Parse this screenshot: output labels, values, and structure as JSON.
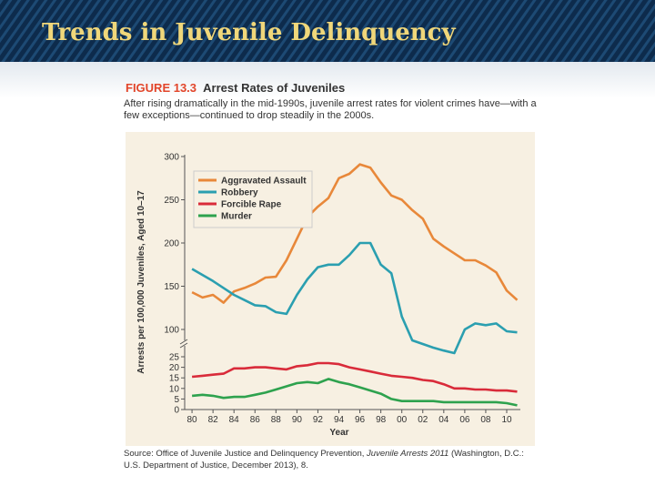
{
  "header": {
    "title": "Trends in Juvenile Delinquency"
  },
  "figure": {
    "label": "FIGURE 13.3",
    "title": "Arrest Rates of Juveniles",
    "caption": "After rising dramatically in the mid-1990s, juvenile arrest rates for violent crimes have—with a few exceptions—continued to drop steadily in the 2000s.",
    "source": {
      "before": "Source: Office of Juvenile Justice and Delinquency Prevention, ",
      "italic": "Juvenile Arrests 2011",
      "after": " (Washington, D.C.: U.S. Department of Justice, December 2013), 8."
    }
  },
  "chart_data": {
    "type": "line",
    "y_label": "Arrests per 100,000 Juveniles, Aged 10–17",
    "x_label": "Year",
    "x": [
      1980,
      1981,
      1982,
      1983,
      1984,
      1985,
      1986,
      1987,
      1988,
      1989,
      1990,
      1991,
      1992,
      1993,
      1994,
      1995,
      1996,
      1997,
      1998,
      1999,
      2000,
      2001,
      2002,
      2003,
      2004,
      2005,
      2006,
      2007,
      2008,
      2009,
      2010,
      2011
    ],
    "series": [
      {
        "name": "Aggravated Assault",
        "color": "#e8883a",
        "values": [
          143,
          137,
          140,
          131,
          144,
          148,
          153,
          160,
          161,
          180,
          205,
          230,
          242,
          252,
          275,
          280,
          291,
          287,
          270,
          255,
          250,
          238,
          228,
          205,
          196,
          188,
          180,
          180,
          174,
          166,
          145,
          134
        ]
      },
      {
        "name": "Robbery",
        "color": "#2b9fb0",
        "values": [
          170,
          163,
          156,
          148,
          140,
          134,
          128,
          127,
          120,
          118,
          140,
          158,
          172,
          175,
          175,
          186,
          200,
          200,
          175,
          165,
          115,
          70,
          60,
          50,
          42,
          35,
          100,
          107,
          105,
          107,
          95,
          92
        ]
      },
      {
        "name": "Forcible Rape",
        "color": "#d92b3a",
        "values": [
          15.5,
          16,
          16.5,
          17,
          19.5,
          19.5,
          20,
          20,
          19.5,
          19,
          20.5,
          21,
          22,
          22,
          21.5,
          20,
          19,
          18,
          17,
          16,
          15.5,
          15,
          14,
          13.5,
          12,
          10,
          10,
          9.5,
          9.5,
          9,
          9,
          8.5
        ]
      },
      {
        "name": "Murder",
        "color": "#2ea24e",
        "values": [
          6.5,
          7,
          6.5,
          5.5,
          6,
          6,
          7,
          8,
          9.5,
          11,
          12.5,
          13,
          12.5,
          14.5,
          13,
          12,
          10.5,
          9,
          7.5,
          5,
          4,
          4,
          4,
          4,
          3.5,
          3.5,
          3.5,
          3.5,
          3.5,
          3.5,
          3,
          2
        ]
      }
    ],
    "xlim": [
      1979.3,
      2011.3
    ],
    "ylim": [
      0,
      300
    ],
    "axis_break": [
      25,
      100
    ],
    "xticks": [
      {
        "value": 1980,
        "label": "80"
      },
      {
        "value": 1982,
        "label": "82"
      },
      {
        "value": 1984,
        "label": "84"
      },
      {
        "value": 1986,
        "label": "86"
      },
      {
        "value": 1988,
        "label": "88"
      },
      {
        "value": 1990,
        "label": "90"
      },
      {
        "value": 1992,
        "label": "92"
      },
      {
        "value": 1994,
        "label": "94"
      },
      {
        "value": 1996,
        "label": "96"
      },
      {
        "value": 1998,
        "label": "98"
      },
      {
        "value": 2000,
        "label": "00"
      },
      {
        "value": 2002,
        "label": "02"
      },
      {
        "value": 2004,
        "label": "04"
      },
      {
        "value": 2006,
        "label": "06"
      },
      {
        "value": 2008,
        "label": "08"
      },
      {
        "value": 2010,
        "label": "10"
      }
    ],
    "yticks": [
      0,
      5,
      10,
      15,
      20,
      25,
      100,
      150,
      200,
      250,
      300
    ],
    "legend": "upper left"
  }
}
